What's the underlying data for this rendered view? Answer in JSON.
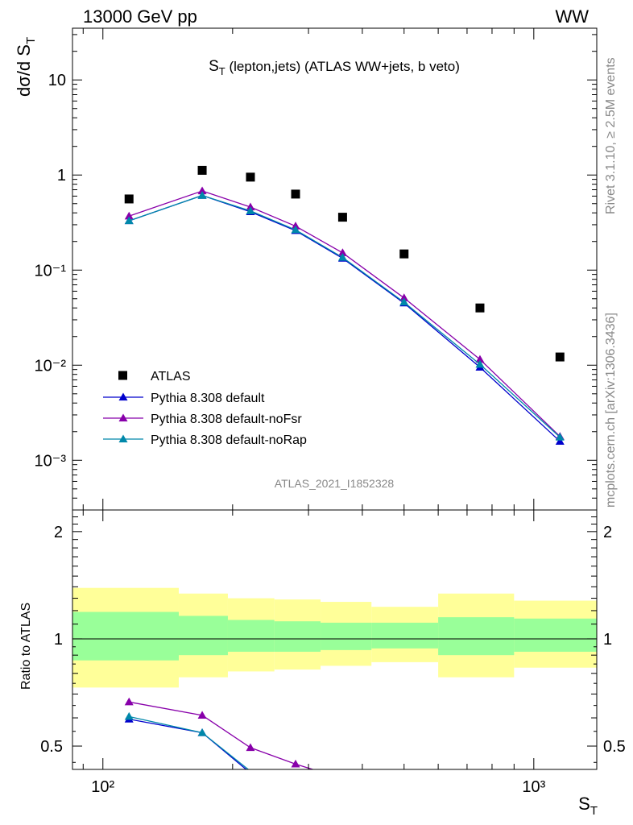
{
  "header": {
    "left": "13000 GeV pp",
    "right": "WW"
  },
  "side_text": {
    "rivet": "Rivet 3.1.10, ≥ 2.5M events",
    "mcplots": "mcplots.cern.ch [arXiv:1306.3436]"
  },
  "colors": {
    "atlas": "#000000",
    "default": "#0000cc",
    "noFsr": "#8800aa",
    "noRap": "#0088aa",
    "band_inner": "#99ff99",
    "band_outer": "#ffff99"
  },
  "chart_data": [
    {
      "type": "line",
      "title": "S_T (lepton,jets) (ATLAS WW+jets, b veto)",
      "title_main": "S",
      "title_sub": "T",
      "title_rest": " (lepton,jets) (ATLAS WW+jets, b veto)",
      "ylabel": "dσ/d S_T",
      "ylabel_main": "dσ/d S",
      "ylabel_sub": "T",
      "yscale": "log",
      "xscale": "log",
      "xlim": [
        85,
        1400
      ],
      "ylim": [
        0.0003,
        35
      ],
      "ytick_labels": [
        "10",
        "1",
        "10⁻¹",
        "10⁻²",
        "10⁻³"
      ],
      "ytick_values": [
        10,
        1,
        0.1,
        0.01,
        0.001
      ],
      "watermark": "ATLAS_2021_I1852328",
      "legend_position": "lower-left",
      "series": [
        {
          "name": "ATLAS",
          "marker": "square",
          "x": [
            115,
            170,
            220,
            280,
            360,
            500,
            750,
            1150
          ],
          "values": [
            0.56,
            1.12,
            0.95,
            0.63,
            0.36,
            0.148,
            0.04,
            0.0122
          ]
        },
        {
          "name": "Pythia 8.308 default",
          "marker": "triangle",
          "x": [
            115,
            170,
            220,
            280,
            360,
            500,
            750,
            1150
          ],
          "values": [
            0.33,
            0.61,
            0.41,
            0.26,
            0.133,
            0.045,
            0.0095,
            0.00158
          ]
        },
        {
          "name": "Pythia 8.308 default-noFsr",
          "marker": "triangle",
          "x": [
            115,
            170,
            220,
            280,
            360,
            500,
            750,
            1150
          ],
          "values": [
            0.37,
            0.68,
            0.46,
            0.29,
            0.152,
            0.051,
            0.0115,
            0.00178
          ]
        },
        {
          "name": "Pythia 8.308 default-noRap",
          "marker": "triangle",
          "x": [
            115,
            170,
            220,
            280,
            360,
            500,
            750,
            1150
          ],
          "values": [
            0.33,
            0.61,
            0.42,
            0.265,
            0.136,
            0.046,
            0.0102,
            0.00175
          ]
        }
      ]
    },
    {
      "type": "line",
      "ylabel": "Ratio to ATLAS",
      "xlabel": "S_T",
      "xlabel_main": "S",
      "xlabel_sub": "T",
      "xscale": "log",
      "xlim": [
        85,
        1400
      ],
      "ylim": [
        0.43,
        2.3
      ],
      "ytick_labels": [
        "2",
        "1",
        "0.5"
      ],
      "ytick_values": [
        2,
        1,
        0.5
      ],
      "xtick_labels": [
        "10²",
        "10³"
      ],
      "xtick_values": [
        100,
        1000
      ],
      "band_edges": [
        85,
        150,
        195,
        250,
        320,
        420,
        600,
        900,
        1400
      ],
      "band_inner": [
        [
          0.87,
          1.19
        ],
        [
          0.9,
          1.16
        ],
        [
          0.92,
          1.13
        ],
        [
          0.92,
          1.12
        ],
        [
          0.93,
          1.11
        ],
        [
          0.94,
          1.11
        ],
        [
          0.9,
          1.15
        ],
        [
          0.92,
          1.14
        ]
      ],
      "band_outer": [
        [
          0.73,
          1.39
        ],
        [
          0.78,
          1.34
        ],
        [
          0.81,
          1.3
        ],
        [
          0.82,
          1.29
        ],
        [
          0.84,
          1.27
        ],
        [
          0.86,
          1.23
        ],
        [
          0.78,
          1.34
        ],
        [
          0.83,
          1.28
        ]
      ],
      "reference": 1,
      "series": [
        {
          "name": "Pythia 8.308 default",
          "x": [
            115,
            170,
            220,
            280
          ],
          "values": [
            0.595,
            0.545,
            0.42,
            0.37
          ]
        },
        {
          "name": "Pythia 8.308 default-noFsr",
          "x": [
            115,
            170,
            220,
            280,
            360,
            420
          ],
          "values": [
            0.665,
            0.61,
            0.495,
            0.445,
            0.405,
            0.37
          ]
        },
        {
          "name": "Pythia 8.308 default-noRap",
          "x": [
            115,
            170,
            220,
            280
          ],
          "values": [
            0.605,
            0.545,
            0.425,
            0.375
          ]
        }
      ]
    }
  ]
}
